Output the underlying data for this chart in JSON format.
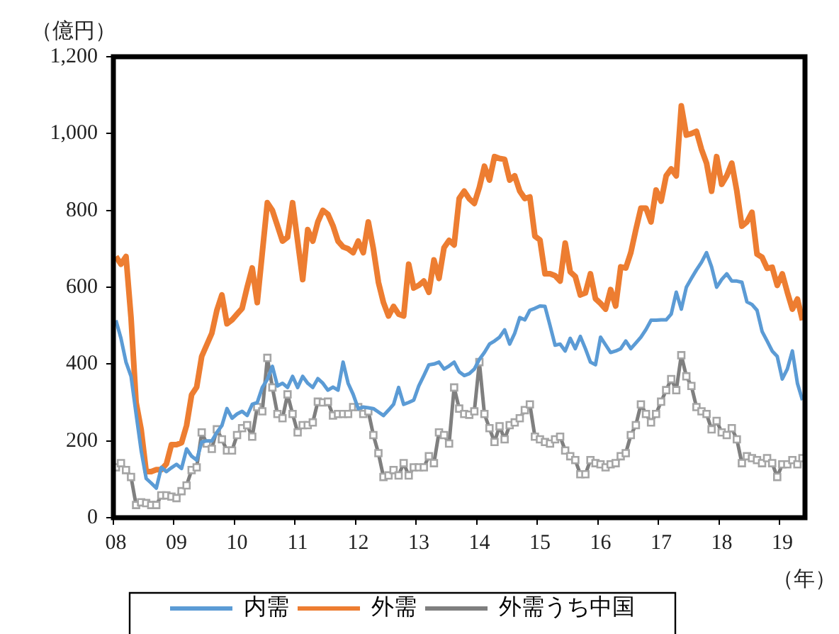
{
  "chart_data": {
    "type": "line",
    "ylabel": "（億円）",
    "xlabel": "（年）",
    "legend": "bottom",
    "ylim": [
      0,
      1200
    ],
    "yticks": [
      0,
      200,
      400,
      600,
      800,
      {
        "value": 1000,
        "label": "1,000"
      },
      {
        "value": 1200,
        "label": "1,200"
      }
    ],
    "categories": [
      "08",
      null,
      null,
      null,
      null,
      null,
      null,
      null,
      null,
      null,
      null,
      null,
      "09",
      null,
      null,
      null,
      null,
      null,
      null,
      null,
      null,
      null,
      null,
      null,
      "10",
      null,
      null,
      null,
      null,
      null,
      null,
      null,
      null,
      null,
      null,
      null,
      "11",
      null,
      null,
      null,
      null,
      null,
      null,
      null,
      null,
      null,
      null,
      null,
      "12",
      null,
      null,
      null,
      null,
      null,
      null,
      null,
      null,
      null,
      null,
      null,
      "13",
      null,
      null,
      null,
      null,
      null,
      null,
      null,
      null,
      null,
      null,
      null,
      "14",
      null,
      null,
      null,
      null,
      null,
      null,
      null,
      null,
      null,
      null,
      null,
      "15",
      null,
      null,
      null,
      null,
      null,
      null,
      null,
      null,
      null,
      null,
      null,
      "16",
      null,
      null,
      null,
      null,
      null,
      null,
      null,
      null,
      null,
      null,
      null,
      "17",
      null,
      null,
      null,
      null,
      null,
      null,
      null,
      null,
      null,
      null,
      null,
      "18",
      null,
      null,
      null,
      null,
      null,
      null,
      null,
      null,
      null,
      null,
      null,
      "19",
      null,
      null,
      null,
      null
    ],
    "series": [
      {
        "name": "内需",
        "color": "#5b9bd5",
        "marker": "none",
        "values": [
          514,
          467,
          405,
          368,
          270,
          175,
          102,
          90,
          77,
          131,
          120,
          130,
          139,
          128,
          179,
          160,
          150,
          197,
          200,
          200,
          222,
          240,
          284,
          259,
          270,
          277,
          266,
          295,
          300,
          339,
          360,
          394,
          343,
          350,
          339,
          368,
          339,
          368,
          350,
          339,
          362,
          350,
          332,
          340,
          332,
          405,
          350,
          321,
          284,
          288,
          286,
          284,
          275,
          266,
          280,
          295,
          339,
          295,
          300,
          306,
          343,
          370,
          398,
          400,
          405,
          387,
          395,
          405,
          380,
          370,
          375,
          387,
          412,
          430,
          452,
          460,
          470,
          489,
          452,
          480,
          521,
          515,
          540,
          545,
          551,
          550,
          500,
          449,
          452,
          434,
          467,
          440,
          472,
          440,
          405,
          398,
          470,
          450,
          430,
          434,
          440,
          460,
          440,
          455,
          470,
          490,
          514,
          514,
          515,
          515,
          530,
          587,
          543,
          600,
          623,
          645,
          665,
          690,
          653,
          600,
          620,
          635,
          616,
          616,
          613,
          562,
          555,
          540,
          485,
          460,
          434,
          420,
          361,
          387,
          434,
          350,
          306
        ]
      },
      {
        "name": "外需",
        "color": "#ed7d31",
        "marker": "none",
        "values": [
          680,
          660,
          680,
          520,
          300,
          230,
          120,
          120,
          125,
          125,
          140,
          190,
          190,
          195,
          240,
          320,
          340,
          420,
          450,
          480,
          540,
          580,
          505,
          515,
          530,
          545,
          600,
          650,
          560,
          690,
          820,
          800,
          760,
          720,
          730,
          820,
          720,
          620,
          750,
          720,
          770,
          800,
          790,
          760,
          720,
          705,
          700,
          690,
          720,
          690,
          770,
          700,
          613,
          560,
          525,
          550,
          530,
          525,
          660,
          598,
          605,
          616,
          587,
          671,
          623,
          703,
          722,
          710,
          831,
          850,
          830,
          818,
          860,
          915,
          879,
          940,
          935,
          933,
          879,
          890,
          850,
          831,
          835,
          733,
          723,
          635,
          635,
          630,
          616,
          715,
          640,
          628,
          580,
          585,
          635,
          570,
          558,
          543,
          594,
          551,
          653,
          650,
          690,
          750,
          806,
          806,
          770,
          853,
          824,
          890,
          908,
          890,
          1072,
          996,
          1000,
          1006,
          959,
          923,
          850,
          940,
          868,
          890,
          923,
          850,
          759,
          770,
          795,
          686,
          678,
          649,
          652,
          605,
          635,
          587,
          543,
          569,
          514
        ]
      },
      {
        "name": "外需うち中国",
        "color": "#7f7f7f",
        "marker": "square",
        "values": [
          131,
          142,
          124,
          106,
          33,
          40,
          38,
          33,
          33,
          58,
          58,
          55,
          51,
          69,
          84,
          124,
          131,
          222,
          193,
          179,
          230,
          204,
          175,
          175,
          215,
          233,
          241,
          211,
          288,
          277,
          416,
          339,
          270,
          259,
          321,
          270,
          222,
          241,
          241,
          248,
          302,
          300,
          302,
          266,
          270,
          270,
          270,
          288,
          288,
          270,
          277,
          215,
          168,
          106,
          110,
          124,
          110,
          142,
          110,
          131,
          131,
          131,
          160,
          142,
          222,
          215,
          193,
          339,
          284,
          270,
          268,
          277,
          405,
          270,
          233,
          197,
          238,
          204,
          241,
          248,
          259,
          280,
          295,
          211,
          204,
          197,
          193,
          204,
          211,
          175,
          160,
          150,
          113,
          113,
          150,
          142,
          139,
          131,
          139,
          142,
          160,
          168,
          215,
          241,
          295,
          270,
          248,
          270,
          302,
          332,
          361,
          332,
          423,
          368,
          343,
          288,
          277,
          270,
          230,
          252,
          222,
          215,
          233,
          204,
          142,
          160,
          155,
          150,
          142,
          155,
          142,
          106,
          139,
          139,
          150,
          139,
          155
        ]
      }
    ]
  }
}
